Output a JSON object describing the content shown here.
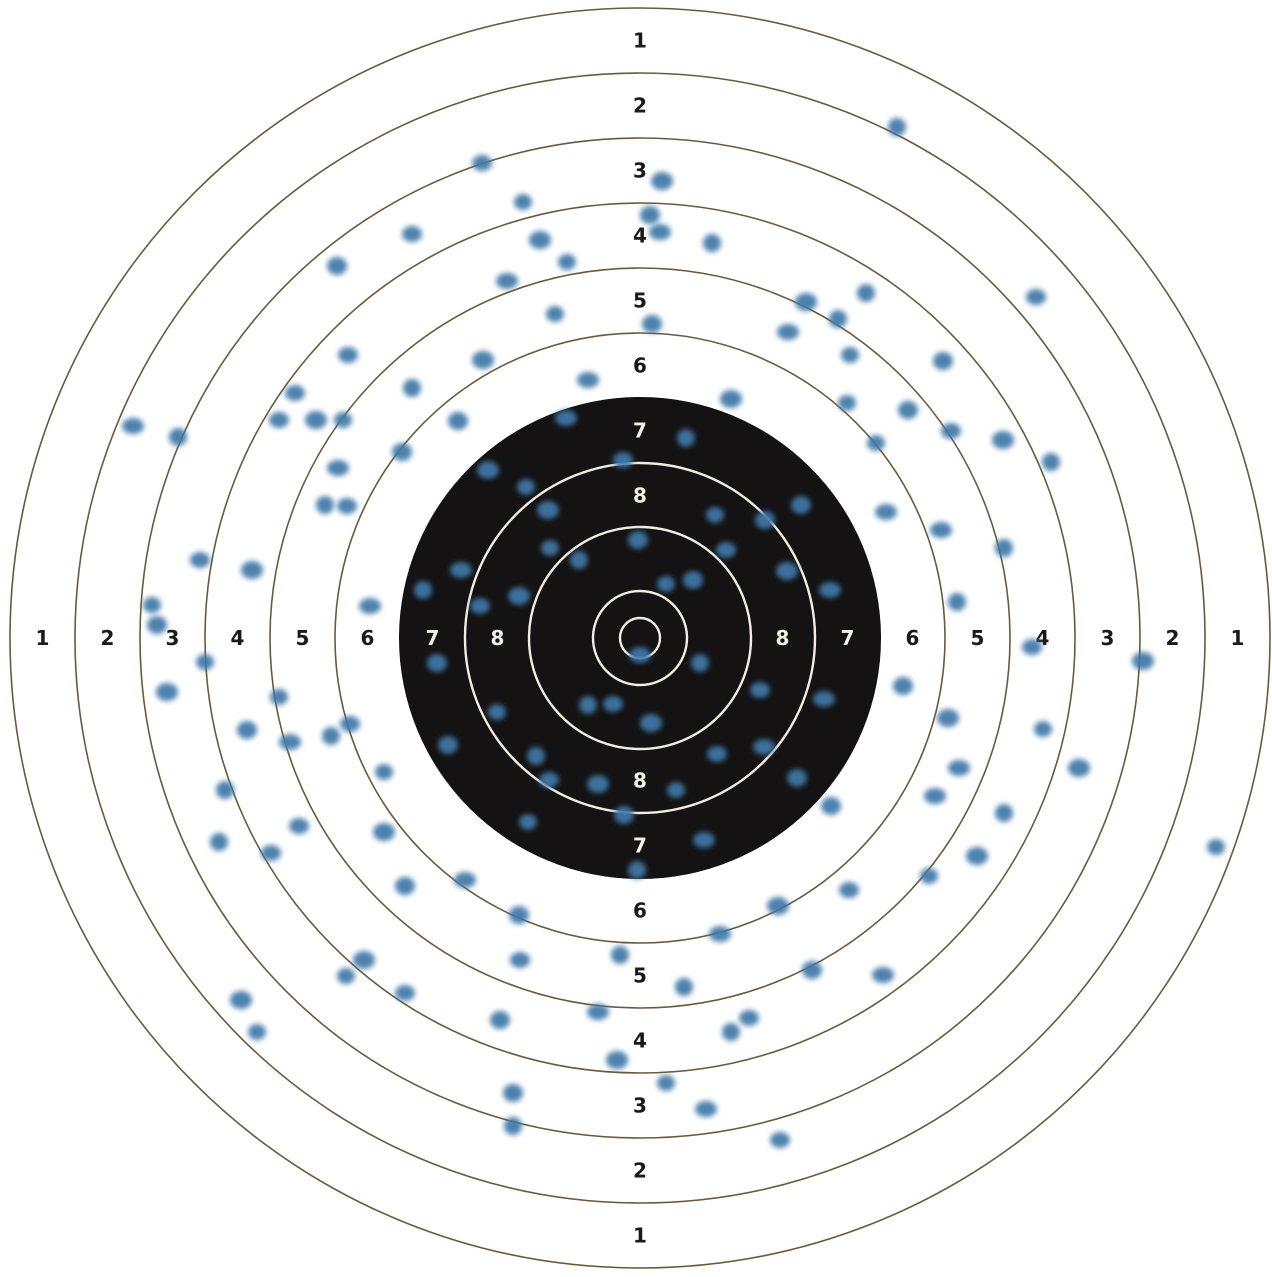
{
  "target": {
    "ring_labels": [
      "1",
      "2",
      "3",
      "4",
      "5",
      "6",
      "7",
      "8"
    ],
    "colors": {
      "ring_line": "#6b5a3a",
      "bull_fill": "#141212",
      "bull_ring_line": "#f2ede0",
      "label_dark": "#1a1a1a",
      "label_light": "#f5f0e6",
      "hit": "#3f78a8",
      "background": "#ffffff"
    }
  }
}
